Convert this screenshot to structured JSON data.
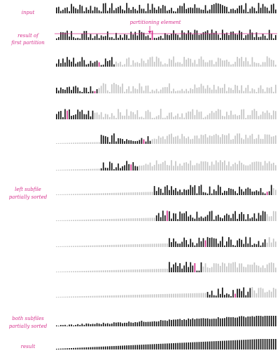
{
  "labels": {
    "input": "input",
    "first_partition_line1": "result of",
    "first_partition_line2": "first partition",
    "partitioning_element": "partitioning element",
    "left_subfile_line1": "left subfile",
    "left_subfile_line2": "partially sorted",
    "both_subfiles_line1": "both subfiles",
    "both_subfiles_line2": "partially sorted",
    "result": "result"
  },
  "colors": {
    "active": "#111111",
    "inactive": "#c4c4c4",
    "accent": "#d62f8c"
  },
  "bar_count": 104,
  "rows": [
    {
      "name": "input",
      "active_from": 0,
      "active_to": 103,
      "sorted": "none",
      "pivot": null
    },
    {
      "name": "first-partition",
      "active_from": 0,
      "active_to": 103,
      "sorted": "none",
      "pivot": 45,
      "line": true
    },
    {
      "name": "row-3",
      "active_from": 0,
      "active_to": 27,
      "sorted": "none",
      "pivot": 20
    },
    {
      "name": "row-4",
      "active_from": 0,
      "active_to": 19,
      "sorted": "none",
      "pivot": 18
    },
    {
      "name": "row-5",
      "active_from": 0,
      "active_to": 17,
      "sorted": "none",
      "pivot": 5
    },
    {
      "name": "row-6",
      "active_from": 21,
      "active_to": 44,
      "sorted": "left",
      "pivot": 41
    },
    {
      "name": "row-7",
      "active_from": 21,
      "active_to": 38,
      "sorted": "left",
      "pivot": 35
    },
    {
      "name": "left-subfile",
      "active_from": 46,
      "active_to": 101,
      "sorted": "left",
      "pivot": 99
    },
    {
      "name": "row-9",
      "active_from": 47,
      "active_to": 98,
      "sorted": "left",
      "pivot": 52
    },
    {
      "name": "row-10",
      "active_from": 53,
      "active_to": 98,
      "sorted": "left",
      "pivot": 70
    },
    {
      "name": "row-11",
      "active_from": 53,
      "active_to": 68,
      "sorted": "left",
      "pivot": 65
    },
    {
      "name": "row-12",
      "active_from": 71,
      "active_to": 91,
      "sorted": "left",
      "pivot": 84
    },
    {
      "name": "both-subfiles",
      "active_from": 0,
      "active_to": 103,
      "sorted": "partial",
      "pivot": null
    },
    {
      "name": "result",
      "active_from": 0,
      "active_to": 103,
      "sorted": "full",
      "pivot": null
    }
  ]
}
